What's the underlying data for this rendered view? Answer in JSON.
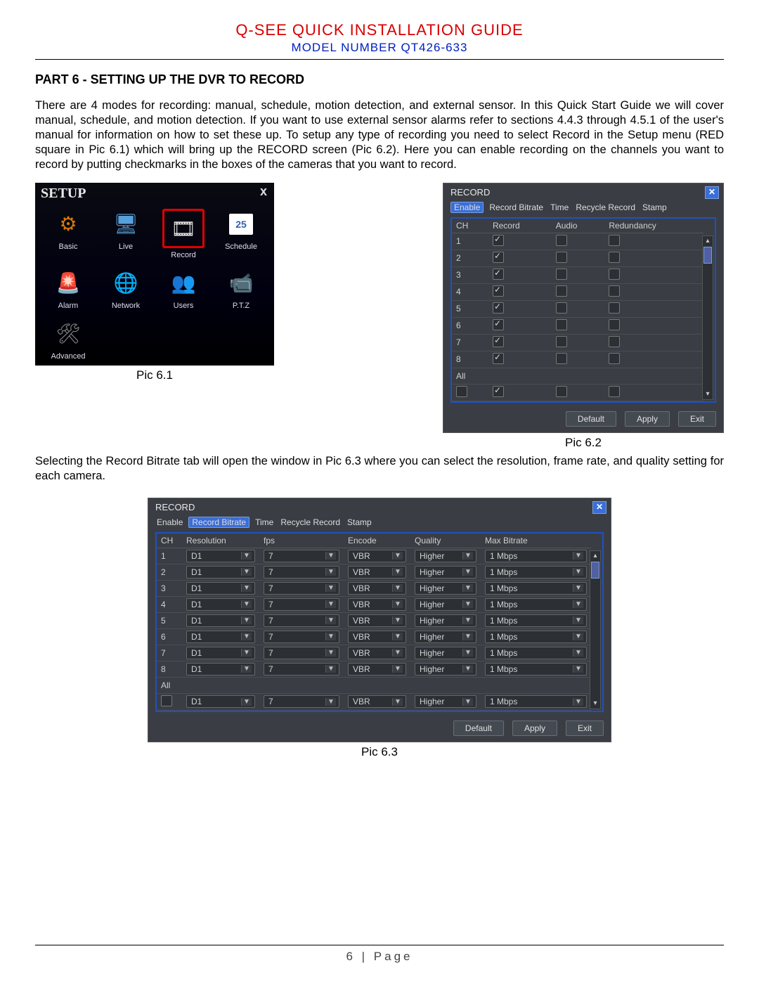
{
  "header": {
    "main_title": "Q-SEE QUICK INSTALLATION GUIDE",
    "model": "MODEL NUMBER QT426-633"
  },
  "section_title": "PART 6 - SETTING UP THE DVR TO RECORD",
  "para1": "There are 4 modes for recording: manual, schedule, motion detection, and external sensor. In this Quick Start Guide we will cover manual, schedule, and motion detection. If you want to use external sensor alarms refer to sections 4.4.3 through 4.5.1 of the user's manual for information on how to set these up. To setup any type of recording you need to select Record in the Setup menu (RED square in Pic 6.1) which will bring up the RECORD screen (Pic 6.2). Here you can enable recording on the channels you want to record by putting checkmarks in the boxes of the cameras that you want to record.",
  "para2": "Selecting the Record Bitrate tab will open the window in Pic 6.3 where you can select the resolution, frame rate, and quality setting for each camera.",
  "pic61": {
    "title": "SETUP",
    "items": [
      {
        "label": "Basic",
        "icon": "⚙",
        "color": "#d87a00"
      },
      {
        "label": "Live",
        "icon": "🖥",
        "color": "#5aa0d8"
      },
      {
        "label": "Record",
        "icon": "🎞",
        "color": "#e8e8e8",
        "highlight": true
      },
      {
        "label": "Schedule",
        "icon": "25",
        "color": "#ffffff",
        "box": true
      },
      {
        "label": "Alarm",
        "icon": "🚨",
        "color": "#d83020"
      },
      {
        "label": "Network",
        "icon": "🌐",
        "color": "#3070d0"
      },
      {
        "label": "Users",
        "icon": "👥",
        "color": "#d89a50"
      },
      {
        "label": "P.T.Z",
        "icon": "📹",
        "color": "#e8e8e8"
      },
      {
        "label": "Advanced",
        "icon": "🛠",
        "color": "#888"
      }
    ],
    "caption": "Pic 6.1"
  },
  "pic62": {
    "title": "RECORD",
    "tabs": [
      "Enable",
      "Record Bitrate",
      "Time",
      "Recycle Record",
      "Stamp"
    ],
    "active_tab": 0,
    "columns": [
      "CH",
      "Record",
      "Audio",
      "Redundancy"
    ],
    "rows": [
      {
        "ch": "1",
        "record": true,
        "audio": false,
        "redundancy": false
      },
      {
        "ch": "2",
        "record": true,
        "audio": false,
        "redundancy": false
      },
      {
        "ch": "3",
        "record": true,
        "audio": false,
        "redundancy": false
      },
      {
        "ch": "4",
        "record": true,
        "audio": false,
        "redundancy": false
      },
      {
        "ch": "5",
        "record": true,
        "audio": false,
        "redundancy": false
      },
      {
        "ch": "6",
        "record": true,
        "audio": false,
        "redundancy": false
      },
      {
        "ch": "7",
        "record": true,
        "audio": false,
        "redundancy": false
      },
      {
        "ch": "8",
        "record": true,
        "audio": false,
        "redundancy": false
      }
    ],
    "all_label": "All",
    "all": {
      "allchk": false,
      "record": true,
      "audio": false,
      "redundancy": false
    },
    "buttons": [
      "Default",
      "Apply",
      "Exit"
    ],
    "caption": "Pic 6.2"
  },
  "pic63": {
    "title": "RECORD",
    "tabs": [
      "Enable",
      "Record Bitrate",
      "Time",
      "Recycle Record",
      "Stamp"
    ],
    "active_tab": 1,
    "columns": [
      "CH",
      "Resolution",
      "fps",
      "Encode",
      "Quality",
      "Max Bitrate"
    ],
    "rows": [
      {
        "ch": "1",
        "res": "D1",
        "fps": "7",
        "enc": "VBR",
        "q": "Higher",
        "mb": "1 Mbps"
      },
      {
        "ch": "2",
        "res": "D1",
        "fps": "7",
        "enc": "VBR",
        "q": "Higher",
        "mb": "1 Mbps"
      },
      {
        "ch": "3",
        "res": "D1",
        "fps": "7",
        "enc": "VBR",
        "q": "Higher",
        "mb": "1 Mbps"
      },
      {
        "ch": "4",
        "res": "D1",
        "fps": "7",
        "enc": "VBR",
        "q": "Higher",
        "mb": "1 Mbps"
      },
      {
        "ch": "5",
        "res": "D1",
        "fps": "7",
        "enc": "VBR",
        "q": "Higher",
        "mb": "1 Mbps"
      },
      {
        "ch": "6",
        "res": "D1",
        "fps": "7",
        "enc": "VBR",
        "q": "Higher",
        "mb": "1 Mbps"
      },
      {
        "ch": "7",
        "res": "D1",
        "fps": "7",
        "enc": "VBR",
        "q": "Higher",
        "mb": "1 Mbps"
      },
      {
        "ch": "8",
        "res": "D1",
        "fps": "7",
        "enc": "VBR",
        "q": "Higher",
        "mb": "1 Mbps"
      }
    ],
    "all_label": "All",
    "all": {
      "res": "D1",
      "fps": "7",
      "enc": "VBR",
      "q": "Higher",
      "mb": "1 Mbps"
    },
    "buttons": [
      "Default",
      "Apply",
      "Exit"
    ],
    "caption": "Pic 6.3"
  },
  "footer": "6 | Page"
}
